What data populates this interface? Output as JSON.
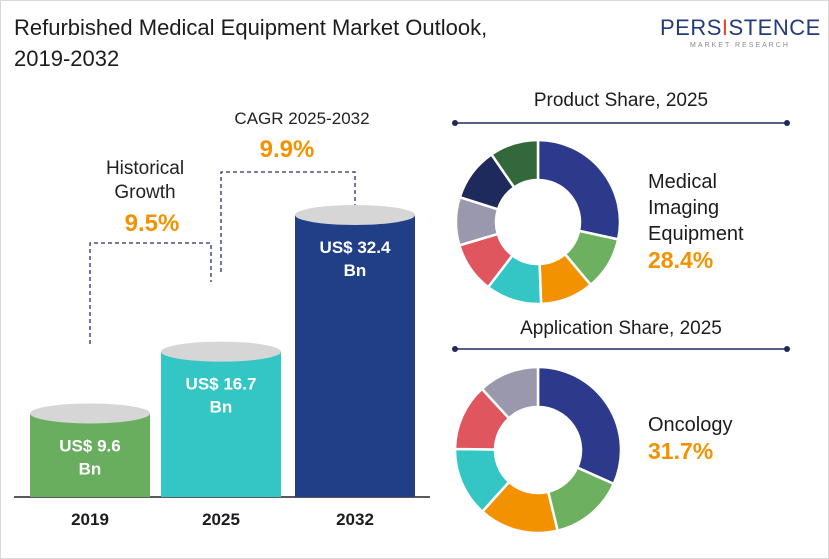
{
  "title_line1": "Refurbished Medical Equipment Market Outlook,",
  "title_line2": "2019-2032",
  "logo": {
    "name_pre": "PERS",
    "name_mid": "I",
    "name_post": "STENCE",
    "sub": "MARKET RESEARCH",
    "color": "#233b7a",
    "accent": "#e8442c"
  },
  "colors": {
    "accent_orange": "#f39200",
    "bar_2019": "#69ad5f",
    "bar_2025": "#33c6c5",
    "bar_2032": "#213f86"
  },
  "annotations": {
    "historical_line1": "Historical",
    "historical_line2": "Growth",
    "historical_value": "9.5%",
    "cagr_label": "CAGR 2025-2032",
    "cagr_value": "9.9%"
  },
  "chart_data": [
    {
      "type": "bar",
      "categories": [
        "2019",
        "2025",
        "2032"
      ],
      "values": [
        9.6,
        16.7,
        32.4
      ],
      "unit": "US$ Bn",
      "labels": [
        [
          "US$ 9.6",
          "Bn"
        ],
        [
          "US$ 16.7",
          "Bn"
        ],
        [
          "US$ 32.4",
          "Bn"
        ]
      ]
    },
    {
      "type": "pie",
      "title": "Product Share, 2025",
      "highlight": {
        "label_lines": [
          "Medical",
          "Imaging",
          "Equipment"
        ],
        "value": "28.4%"
      },
      "slices": [
        {
          "value": 28.4,
          "color": "#2d3a8c"
        },
        {
          "value": 10.5,
          "color": "#6db160"
        },
        {
          "value": 10.5,
          "color": "#f39200"
        },
        {
          "value": 11.0,
          "color": "#33c6c5"
        },
        {
          "value": 10.0,
          "color": "#e0565e"
        },
        {
          "value": 9.5,
          "color": "#9a98ad"
        },
        {
          "value": 10.5,
          "color": "#1f2a5c"
        },
        {
          "value": 9.6,
          "color": "#33693a"
        }
      ]
    },
    {
      "type": "pie",
      "title": "Application Share, 2025",
      "highlight": {
        "label_lines": [
          "Oncology"
        ],
        "value": "31.7%"
      },
      "slices": [
        {
          "value": 31.7,
          "color": "#2d3a8c"
        },
        {
          "value": 14.5,
          "color": "#6db160"
        },
        {
          "value": 15.5,
          "color": "#f39200"
        },
        {
          "value": 13.5,
          "color": "#33c6c5"
        },
        {
          "value": 13.0,
          "color": "#e0565e"
        },
        {
          "value": 11.8,
          "color": "#9a98ad"
        }
      ]
    }
  ]
}
